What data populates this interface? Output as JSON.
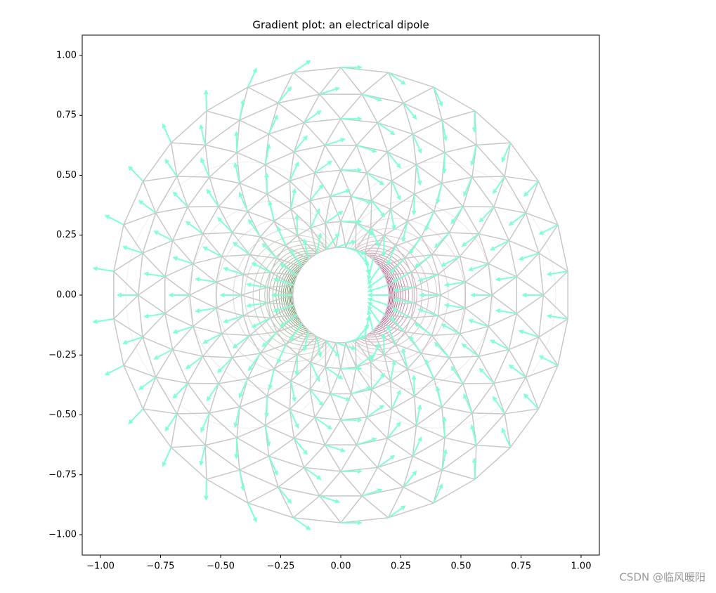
{
  "chart_data": {
    "type": "gradient",
    "title": "Gradient plot: an electrical dipole",
    "xlim": [
      -1.076,
      1.076
    ],
    "ylim": [
      -1.085,
      1.085
    ],
    "xticks": [
      {
        "value": -1,
        "label": "−1.00"
      },
      {
        "value": -0.75,
        "label": "−0.75"
      },
      {
        "value": -0.5,
        "label": "−0.50"
      },
      {
        "value": -0.25,
        "label": "−0.25"
      },
      {
        "value": 0,
        "label": "0.00"
      },
      {
        "value": 0.25,
        "label": "0.25"
      },
      {
        "value": 0.5,
        "label": "0.50"
      },
      {
        "value": 0.75,
        "label": "0.75"
      },
      {
        "value": 1,
        "label": "1.00"
      }
    ],
    "yticks": [
      {
        "value": -1,
        "label": "−1.00"
      },
      {
        "value": -0.75,
        "label": "−0.75"
      },
      {
        "value": -0.5,
        "label": "−0.50"
      },
      {
        "value": -0.25,
        "label": "−0.25"
      },
      {
        "value": 0,
        "label": "0.00"
      },
      {
        "value": 0.25,
        "label": "0.25"
      },
      {
        "value": 0.5,
        "label": "0.50"
      },
      {
        "value": 0.75,
        "label": "0.75"
      },
      {
        "value": 1,
        "label": "1.00"
      }
    ],
    "mesh_color": "#c8c8c8",
    "arrow_color": "#7fffd4"
  },
  "watermark": "CSDN @临风暖阳"
}
